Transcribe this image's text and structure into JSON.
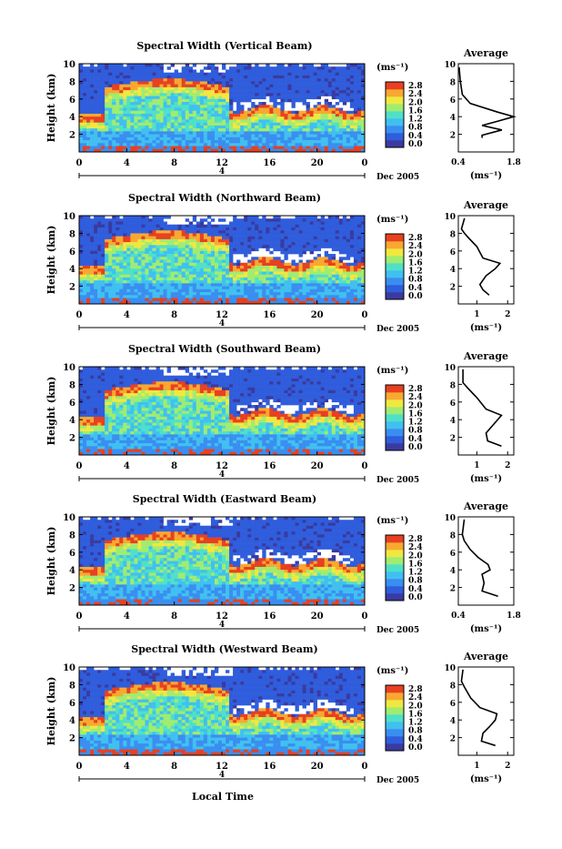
{
  "chart_data": {
    "type": "heatmap",
    "panels": [
      {
        "title": "Spectral Width (Vertical Beam)",
        "avg_xticks": [
          "0.4",
          "1.8"
        ]
      },
      {
        "title": "Spectral Width (Northward Beam)",
        "avg_xticks": [
          "1",
          "2"
        ]
      },
      {
        "title": "Spectral Width (Southward Beam)",
        "avg_xticks": [
          "1",
          "2"
        ]
      },
      {
        "title": "Spectral Width (Eastward Beam)",
        "avg_xticks": [
          "0.4",
          "1.8"
        ]
      },
      {
        "title": "Spectral Width (Westward Beam)",
        "avg_xticks": [
          "1",
          "2"
        ]
      }
    ],
    "ylabel": "Height (km)",
    "xlabel": "Local Time",
    "yticks": [
      "2",
      "4",
      "6",
      "8",
      "10"
    ],
    "ylim": [
      0,
      10
    ],
    "xticks": [
      "0",
      "4",
      "8",
      "12",
      "16",
      "20",
      "0"
    ],
    "xlim": [
      0,
      24
    ],
    "day_marker": "4",
    "month_label": "Dec 2005",
    "colorbar": {
      "unit_label": "(ms⁻¹)",
      "ticks": [
        "0.0",
        "0.4",
        "0.8",
        "1.2",
        "1.6",
        "2.0",
        "2.4",
        "2.8"
      ],
      "range": [
        0,
        2.8
      ],
      "colors": [
        "#3a3aa0",
        "#2f5ddc",
        "#3a8ef0",
        "#40c0f0",
        "#50e0c8",
        "#a0ec70",
        "#f0e840",
        "#f8a830",
        "#e84020"
      ]
    },
    "average": {
      "title": "Average",
      "unit_label": "(ms⁻¹)",
      "profiles": [
        [
          [
            1.0,
            1.6
          ],
          [
            1.0,
            1.9
          ],
          [
            1.5,
            2.5
          ],
          [
            1.0,
            3.0
          ],
          [
            1.4,
            3.5
          ],
          [
            1.8,
            4.0
          ],
          [
            1.4,
            4.5
          ],
          [
            0.7,
            5.5
          ],
          [
            0.5,
            6.5
          ],
          [
            0.45,
            8.0
          ],
          [
            0.42,
            9.6
          ]
        ],
        [
          [
            1.4,
            1.0
          ],
          [
            1.2,
            1.6
          ],
          [
            1.1,
            2.2
          ],
          [
            1.3,
            3.2
          ],
          [
            1.6,
            4.0
          ],
          [
            1.75,
            4.6
          ],
          [
            1.2,
            5.2
          ],
          [
            1.0,
            6.5
          ],
          [
            0.7,
            7.6
          ],
          [
            0.6,
            8.0
          ],
          [
            0.5,
            8.5
          ],
          [
            0.6,
            9.7
          ]
        ],
        [
          [
            1.8,
            1.0
          ],
          [
            1.35,
            1.6
          ],
          [
            1.3,
            2.5
          ],
          [
            1.55,
            3.5
          ],
          [
            1.8,
            4.5
          ],
          [
            1.3,
            5.2
          ],
          [
            1.0,
            6.5
          ],
          [
            0.7,
            7.6
          ],
          [
            0.55,
            8.2
          ],
          [
            0.55,
            9.7
          ]
        ],
        [
          [
            1.4,
            1.0
          ],
          [
            1.0,
            1.6
          ],
          [
            1.05,
            2.5
          ],
          [
            1.0,
            3.5
          ],
          [
            1.2,
            4.0
          ],
          [
            1.15,
            4.6
          ],
          [
            0.9,
            5.4
          ],
          [
            0.7,
            6.3
          ],
          [
            0.55,
            7.3
          ],
          [
            0.5,
            8.0
          ],
          [
            0.55,
            9.7
          ]
        ],
        [
          [
            1.6,
            1.1
          ],
          [
            1.15,
            1.6
          ],
          [
            1.2,
            2.5
          ],
          [
            1.4,
            3.2
          ],
          [
            1.6,
            4.0
          ],
          [
            1.65,
            4.7
          ],
          [
            1.1,
            5.4
          ],
          [
            0.8,
            6.5
          ],
          [
            0.6,
            7.7
          ],
          [
            0.5,
            8.4
          ],
          [
            0.55,
            9.7
          ]
        ]
      ],
      "xlims": [
        [
          0.4,
          1.8
        ],
        [
          0.4,
          2.2
        ],
        [
          0.4,
          2.2
        ],
        [
          0.4,
          1.8
        ],
        [
          0.4,
          2.2
        ]
      ]
    }
  }
}
